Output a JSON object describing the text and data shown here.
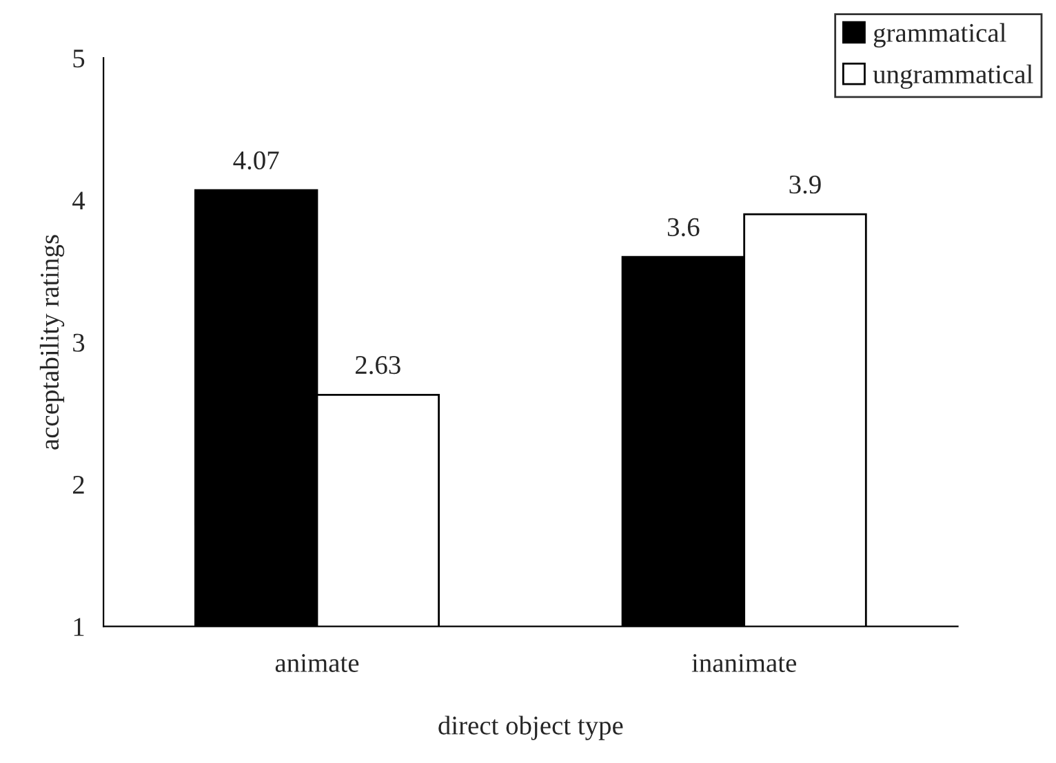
{
  "chart_data": {
    "type": "bar",
    "xlabel": "direct object type",
    "ylabel": "acceptability ratings",
    "categories": [
      "animate",
      "inanimate"
    ],
    "series": [
      {
        "name": "grammatical",
        "color": "#000000",
        "values": [
          4.07,
          3.6
        ]
      },
      {
        "name": "ungrammatical",
        "color": "#ffffff",
        "values": [
          2.63,
          3.9
        ]
      }
    ],
    "ylim": [
      1,
      5
    ],
    "yticks": [
      1,
      2,
      3,
      4,
      5
    ],
    "data_labels": true,
    "grid": false,
    "legend": "top right"
  }
}
